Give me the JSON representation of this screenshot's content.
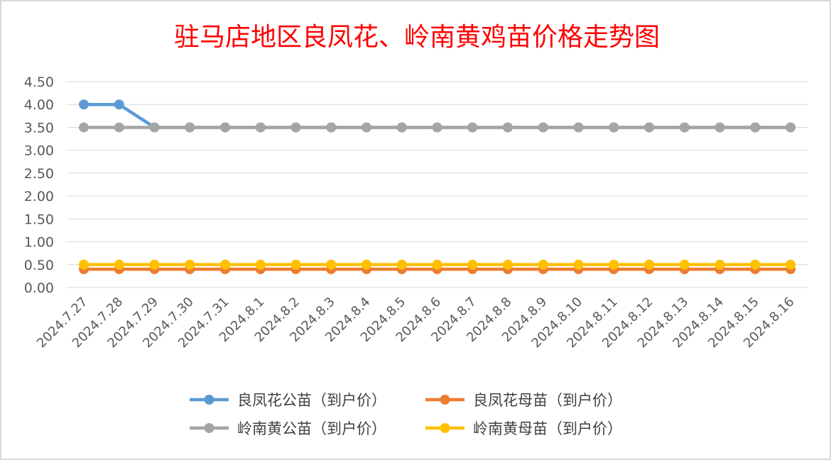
{
  "chart_data": {
    "type": "line",
    "title": "驻马店地区良凤花、岭南黄鸡苗价格走势图",
    "xlabel": "",
    "ylabel": "",
    "ylim": [
      0,
      4.5
    ],
    "y_ticks": [
      "0.00",
      "0.50",
      "1.00",
      "1.50",
      "2.00",
      "2.50",
      "3.00",
      "3.50",
      "4.00",
      "4.50"
    ],
    "grid": true,
    "legend_position": "bottom",
    "categories": [
      "2024.7.27",
      "2024.7.28",
      "2024.7.29",
      "2024.7.30",
      "2024.7.31",
      "2024.8.1",
      "2024.8.2",
      "2024.8.3",
      "2024.8.4",
      "2024.8.5",
      "2024.8.6",
      "2024.8.7",
      "2024.8.8",
      "2024.8.9",
      "2024.8.10",
      "2024.8.11",
      "2024.8.12",
      "2024.8.13",
      "2024.8.14",
      "2024.8.15",
      "2024.8.16"
    ],
    "series": [
      {
        "name": "良凤花公苗（到户价）",
        "color": "#5b9bd5",
        "values": [
          4.0,
          4.0,
          3.5,
          3.5,
          3.5,
          3.5,
          3.5,
          3.5,
          3.5,
          3.5,
          3.5,
          3.5,
          3.5,
          3.5,
          3.5,
          3.5,
          3.5,
          3.5,
          3.5,
          3.5,
          3.5
        ]
      },
      {
        "name": "良凤花母苗（到户价）",
        "color": "#ed7d31",
        "values": [
          0.4,
          0.4,
          0.4,
          0.4,
          0.4,
          0.4,
          0.4,
          0.4,
          0.4,
          0.4,
          0.4,
          0.4,
          0.4,
          0.4,
          0.4,
          0.4,
          0.4,
          0.4,
          0.4,
          0.4,
          0.4
        ]
      },
      {
        "name": "岭南黄公苗（到户价）",
        "color": "#a5a5a5",
        "values": [
          3.5,
          3.5,
          3.5,
          3.5,
          3.5,
          3.5,
          3.5,
          3.5,
          3.5,
          3.5,
          3.5,
          3.5,
          3.5,
          3.5,
          3.5,
          3.5,
          3.5,
          3.5,
          3.5,
          3.5,
          3.5
        ]
      },
      {
        "name": "岭南黄母苗（到户价）",
        "color": "#ffc000",
        "values": [
          0.5,
          0.5,
          0.5,
          0.5,
          0.5,
          0.5,
          0.5,
          0.5,
          0.5,
          0.5,
          0.5,
          0.5,
          0.5,
          0.5,
          0.5,
          0.5,
          0.5,
          0.5,
          0.5,
          0.5,
          0.5
        ]
      }
    ]
  }
}
